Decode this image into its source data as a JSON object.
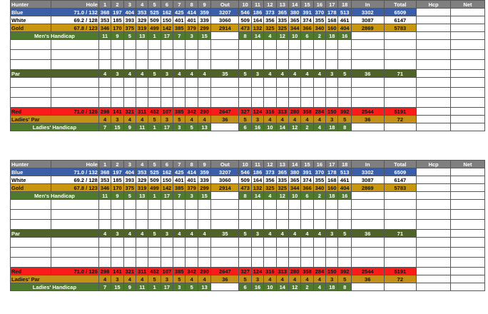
{
  "course_label": "Hunter",
  "hole_label": "Hole",
  "hole_numbers": [
    "1",
    "2",
    "3",
    "4",
    "5",
    "6",
    "7",
    "8",
    "9",
    "Out",
    "10",
    "11",
    "12",
    "13",
    "14",
    "15",
    "16",
    "17",
    "18",
    "In",
    "Total",
    "Hcp",
    "Net"
  ],
  "colors": {
    "header": "#7f7f7f",
    "blue": "#3b5ea8",
    "white": "#ffffff",
    "gold": "#c9970f",
    "green": "#4f7a2d",
    "par": "#4f6228",
    "red": "#fb1b1b",
    "ladies_par": "#c38f16"
  },
  "cards": [
    {
      "blue": {
        "label": "Blue",
        "rating": "71.0 / 132",
        "cells": [
          "368",
          "197",
          "404",
          "353",
          "525",
          "162",
          "425",
          "414",
          "359",
          "3207",
          "546",
          "186",
          "373",
          "365",
          "380",
          "391",
          "370",
          "178",
          "513",
          "3302",
          "6509",
          "",
          ""
        ]
      },
      "white": {
        "label": "White",
        "rating": "69.2 / 128",
        "cells": [
          "353",
          "185",
          "393",
          "329",
          "509",
          "150",
          "401",
          "401",
          "339",
          "3060",
          "509",
          "164",
          "356",
          "335",
          "365",
          "374",
          "355",
          "168",
          "461",
          "3087",
          "6147",
          "",
          ""
        ]
      },
      "gold": {
        "label": "Gold",
        "rating": "67.8 / 123",
        "cells": [
          "346",
          "170",
          "375",
          "319",
          "499",
          "142",
          "385",
          "379",
          "299",
          "2914",
          "473",
          "132",
          "325",
          "325",
          "344",
          "366",
          "340",
          "160",
          "404",
          "2869",
          "5783",
          "",
          ""
        ]
      },
      "mens_handicap": {
        "label": "Men's Handicap",
        "cells": [
          "11",
          "9",
          "5",
          "13",
          "1",
          "17",
          "7",
          "3",
          "15",
          "",
          "8",
          "14",
          "4",
          "12",
          "10",
          "6",
          "2",
          "18",
          "16",
          "",
          "",
          "",
          ""
        ]
      },
      "par": {
        "label": "Par",
        "cells": [
          "4",
          "3",
          "4",
          "4",
          "5",
          "3",
          "4",
          "4",
          "4",
          "35",
          "5",
          "3",
          "4",
          "4",
          "4",
          "4",
          "4",
          "3",
          "5",
          "36",
          "71",
          "",
          ""
        ]
      },
      "red": {
        "label": "Red",
        "rating": "71.0 / 126",
        "cells": [
          "298",
          "141",
          "321",
          "311",
          "452",
          "107",
          "385",
          "342",
          "290",
          "2647",
          "327",
          "124",
          "316",
          "313",
          "280",
          "358",
          "284",
          "150",
          "392",
          "2544",
          "5191",
          "",
          ""
        ]
      },
      "ladies_par": {
        "label": "Ladies' Par",
        "cells": [
          "4",
          "3",
          "4",
          "4",
          "5",
          "3",
          "5",
          "4",
          "4",
          "36",
          "5",
          "3",
          "4",
          "4",
          "4",
          "4",
          "4",
          "3",
          "5",
          "36",
          "72",
          "",
          ""
        ]
      },
      "ladies_handicap": {
        "label": "Ladies' Handicap",
        "cells": [
          "7",
          "15",
          "9",
          "11",
          "1",
          "17",
          "3",
          "5",
          "13",
          "",
          "6",
          "16",
          "10",
          "14",
          "12",
          "2",
          "4",
          "18",
          "8",
          "",
          "",
          "",
          ""
        ]
      }
    },
    {
      "blue": {
        "label": "Blue",
        "rating": "71.0 / 132",
        "cells": [
          "368",
          "197",
          "404",
          "353",
          "525",
          "162",
          "425",
          "414",
          "359",
          "3207",
          "546",
          "186",
          "373",
          "365",
          "380",
          "391",
          "370",
          "178",
          "513",
          "3302",
          "6509",
          "",
          ""
        ]
      },
      "white": {
        "label": "White",
        "rating": "69.2 / 128",
        "cells": [
          "353",
          "185",
          "393",
          "329",
          "509",
          "150",
          "401",
          "401",
          "339",
          "3060",
          "509",
          "164",
          "356",
          "335",
          "365",
          "374",
          "355",
          "168",
          "461",
          "3087",
          "6147",
          "",
          ""
        ]
      },
      "gold": {
        "label": "Gold",
        "rating": "67.8 / 123",
        "cells": [
          "346",
          "170",
          "375",
          "319",
          "499",
          "142",
          "385",
          "379",
          "299",
          "2914",
          "473",
          "132",
          "325",
          "325",
          "344",
          "366",
          "340",
          "160",
          "404",
          "2869",
          "5783",
          "",
          ""
        ]
      },
      "mens_handicap": {
        "label": "Men's Handicap",
        "cells": [
          "11",
          "9",
          "5",
          "13",
          "1",
          "17",
          "7",
          "3",
          "15",
          "",
          "8",
          "14",
          "4",
          "12",
          "10",
          "6",
          "2",
          "18",
          "16",
          "",
          "",
          "",
          ""
        ]
      },
      "par": {
        "label": "Par",
        "cells": [
          "4",
          "3",
          "4",
          "4",
          "5",
          "3",
          "4",
          "4",
          "4",
          "35",
          "5",
          "3",
          "4",
          "4",
          "4",
          "4",
          "4",
          "3",
          "5",
          "36",
          "71",
          "",
          ""
        ]
      },
      "red": {
        "label": "Red",
        "rating": "71.0 / 126",
        "cells": [
          "298",
          "141",
          "321",
          "311",
          "452",
          "107",
          "385",
          "342",
          "290",
          "2647",
          "327",
          "124",
          "316",
          "313",
          "280",
          "358",
          "284",
          "150",
          "392",
          "2544",
          "5191",
          "",
          ""
        ]
      },
      "ladies_par": {
        "label": "Ladies' Par",
        "cells": [
          "4",
          "3",
          "4",
          "4",
          "5",
          "3",
          "5",
          "4",
          "4",
          "36",
          "5",
          "3",
          "4",
          "4",
          "4",
          "4",
          "4",
          "3",
          "5",
          "36",
          "72",
          "",
          ""
        ]
      },
      "ladies_handicap": {
        "label": "Ladies' Handicap",
        "cells": [
          "7",
          "15",
          "9",
          "11",
          "1",
          "17",
          "3",
          "5",
          "13",
          "",
          "6",
          "16",
          "10",
          "14",
          "12",
          "2",
          "4",
          "18",
          "8",
          "",
          "",
          "",
          ""
        ]
      }
    }
  ]
}
